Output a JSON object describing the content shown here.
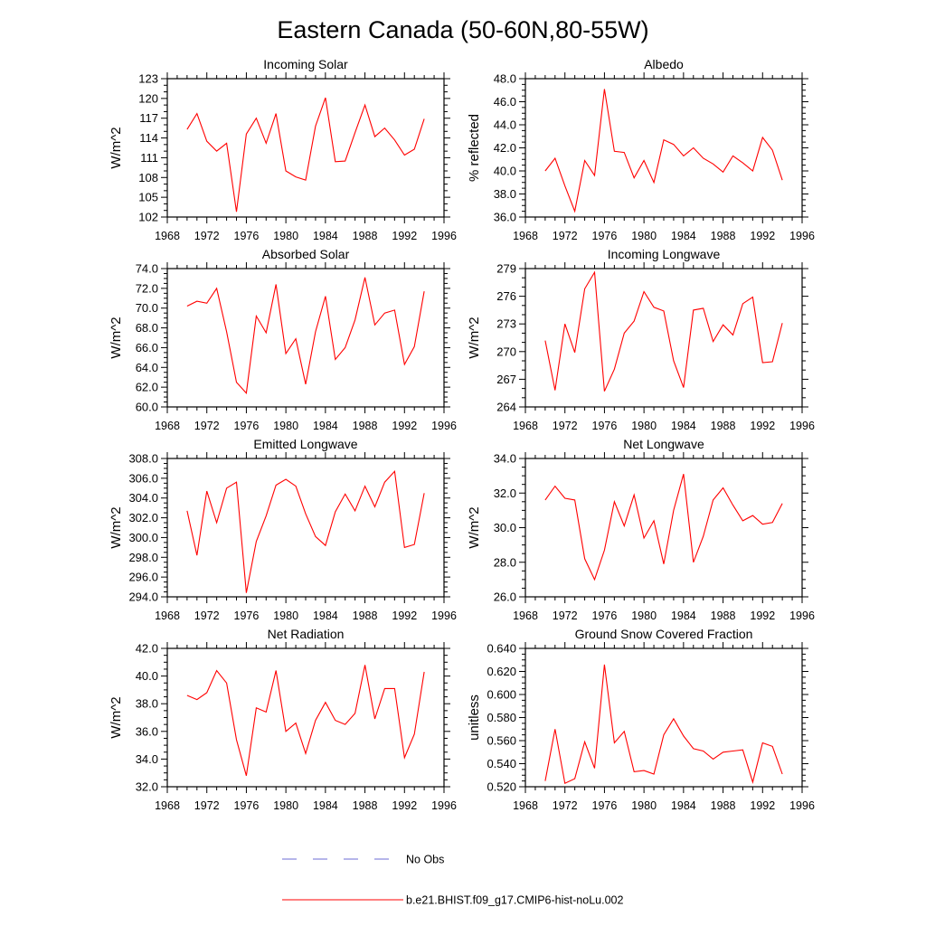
{
  "title": "Eastern Canada (50-60N,80-55W)",
  "legend": {
    "obs_label": "No Obs",
    "obs_color": "#6b6bd6",
    "model_label": "b.e21.BHIST.f09_g17.CMIP6-hist-noLu.002",
    "model_color": "#ff0000"
  },
  "series_color": "#ff0000",
  "chart_data": [
    {
      "type": "line",
      "title": "Incoming Solar",
      "ylabel": "W/m^2",
      "xlim": [
        1968,
        1996
      ],
      "xticks": [
        1968,
        1972,
        1976,
        1980,
        1984,
        1988,
        1992,
        1996
      ],
      "ylim": [
        102,
        123
      ],
      "yticks": [
        102,
        105,
        108,
        111,
        114,
        117,
        120,
        123
      ],
      "ytick_labels": [
        "102",
        "105",
        "108",
        "111",
        "114",
        "117",
        "120",
        "123"
      ],
      "x": [
        1970,
        1971,
        1972,
        1973,
        1974,
        1975,
        1976,
        1977,
        1978,
        1979,
        1980,
        1981,
        1982,
        1983,
        1984,
        1985,
        1986,
        1987,
        1988,
        1989,
        1990,
        1991,
        1992,
        1993,
        1994
      ],
      "values": [
        115.3,
        117.7,
        113.5,
        112.0,
        113.2,
        102.8,
        114.6,
        117.0,
        113.2,
        117.7,
        109.0,
        108.1,
        107.6,
        115.8,
        120.1,
        110.4,
        110.5,
        114.8,
        119.0,
        114.2,
        115.5,
        113.7,
        111.4,
        112.3,
        116.9
      ]
    },
    {
      "type": "line",
      "title": "Albedo",
      "ylabel": "% reflected",
      "xlim": [
        1968,
        1996
      ],
      "xticks": [
        1968,
        1972,
        1976,
        1980,
        1984,
        1988,
        1992,
        1996
      ],
      "ylim": [
        36,
        48
      ],
      "yticks": [
        36,
        38,
        40,
        42,
        44,
        46,
        48
      ],
      "ytick_labels": [
        "36.0",
        "38.0",
        "40.0",
        "42.0",
        "44.0",
        "46.0",
        "48.0"
      ],
      "x": [
        1970,
        1971,
        1972,
        1973,
        1974,
        1975,
        1976,
        1977,
        1978,
        1979,
        1980,
        1981,
        1982,
        1983,
        1984,
        1985,
        1986,
        1987,
        1988,
        1989,
        1990,
        1991,
        1992,
        1993,
        1994
      ],
      "values": [
        40.0,
        41.1,
        38.7,
        36.5,
        40.9,
        39.6,
        47.1,
        41.7,
        41.6,
        39.4,
        40.9,
        39.0,
        42.7,
        42.3,
        41.3,
        42.0,
        41.1,
        40.6,
        39.9,
        41.3,
        40.7,
        40.0,
        42.9,
        41.8,
        39.2
      ]
    },
    {
      "type": "line",
      "title": "Absorbed Solar",
      "ylabel": "W/m^2",
      "xlim": [
        1968,
        1996
      ],
      "xticks": [
        1968,
        1972,
        1976,
        1980,
        1984,
        1988,
        1992,
        1996
      ],
      "ylim": [
        60,
        74
      ],
      "yticks": [
        60,
        62,
        64,
        66,
        68,
        70,
        72,
        74
      ],
      "ytick_labels": [
        "60.0",
        "62.0",
        "64.0",
        "66.0",
        "68.0",
        "70.0",
        "72.0",
        "74.0"
      ],
      "x": [
        1970,
        1971,
        1972,
        1973,
        1974,
        1975,
        1976,
        1977,
        1978,
        1979,
        1980,
        1981,
        1982,
        1983,
        1984,
        1985,
        1986,
        1987,
        1988,
        1989,
        1990,
        1991,
        1992,
        1993,
        1994
      ],
      "values": [
        70.2,
        70.7,
        70.5,
        72.0,
        67.6,
        62.5,
        61.4,
        69.2,
        67.5,
        72.4,
        65.4,
        66.9,
        62.3,
        67.6,
        71.2,
        64.8,
        66.0,
        68.8,
        73.1,
        68.3,
        69.5,
        69.8,
        64.3,
        66.1,
        71.7
      ]
    },
    {
      "type": "line",
      "title": "Incoming Longwave",
      "ylabel": "W/m^2",
      "xlim": [
        1968,
        1996
      ],
      "xticks": [
        1968,
        1972,
        1976,
        1980,
        1984,
        1988,
        1992,
        1996
      ],
      "ylim": [
        264,
        279
      ],
      "yticks": [
        264,
        267,
        270,
        273,
        276,
        279
      ],
      "ytick_labels": [
        "264",
        "267",
        "270",
        "273",
        "276",
        "279"
      ],
      "x": [
        1970,
        1971,
        1972,
        1973,
        1974,
        1975,
        1976,
        1977,
        1978,
        1979,
        1980,
        1981,
        1982,
        1983,
        1984,
        1985,
        1986,
        1987,
        1988,
        1989,
        1990,
        1991,
        1992,
        1993,
        1994
      ],
      "values": [
        271.2,
        265.8,
        273.0,
        269.9,
        276.8,
        278.6,
        265.7,
        268.1,
        272.0,
        273.3,
        276.5,
        274.8,
        274.4,
        269.0,
        266.1,
        274.5,
        274.7,
        271.1,
        272.9,
        271.8,
        275.2,
        275.9,
        268.8,
        268.9,
        273.1
      ]
    },
    {
      "type": "line",
      "title": "Emitted Longwave",
      "ylabel": "W/m^2",
      "xlim": [
        1968,
        1996
      ],
      "xticks": [
        1968,
        1972,
        1976,
        1980,
        1984,
        1988,
        1992,
        1996
      ],
      "ylim": [
        294,
        308
      ],
      "yticks": [
        294,
        296,
        298,
        300,
        302,
        304,
        306,
        308
      ],
      "ytick_labels": [
        "294.0",
        "296.0",
        "298.0",
        "300.0",
        "302.0",
        "304.0",
        "306.0",
        "308.0"
      ],
      "x": [
        1970,
        1971,
        1972,
        1973,
        1974,
        1975,
        1976,
        1977,
        1978,
        1979,
        1980,
        1981,
        1982,
        1983,
        1984,
        1985,
        1986,
        1987,
        1988,
        1989,
        1990,
        1991,
        1992,
        1993,
        1994
      ],
      "values": [
        302.7,
        298.2,
        304.7,
        301.5,
        305.0,
        305.6,
        294.4,
        299.6,
        302.2,
        305.3,
        305.9,
        305.2,
        302.4,
        300.1,
        299.2,
        302.6,
        304.4,
        302.7,
        305.2,
        303.1,
        305.6,
        306.7,
        299.0,
        299.3,
        304.5
      ]
    },
    {
      "type": "line",
      "title": "Net Longwave",
      "ylabel": "W/m^2",
      "xlim": [
        1968,
        1996
      ],
      "xticks": [
        1968,
        1972,
        1976,
        1980,
        1984,
        1988,
        1992,
        1996
      ],
      "ylim": [
        26,
        34
      ],
      "yticks": [
        26,
        28,
        30,
        32,
        34
      ],
      "ytick_labels": [
        "26.0",
        "28.0",
        "30.0",
        "32.0",
        "34.0"
      ],
      "x": [
        1970,
        1971,
        1972,
        1973,
        1974,
        1975,
        1976,
        1977,
        1978,
        1979,
        1980,
        1981,
        1982,
        1983,
        1984,
        1985,
        1986,
        1987,
        1988,
        1989,
        1990,
        1991,
        1992,
        1993,
        1994
      ],
      "values": [
        31.6,
        32.4,
        31.7,
        31.6,
        28.2,
        27.0,
        28.7,
        31.5,
        30.1,
        31.9,
        29.4,
        30.4,
        27.9,
        31.0,
        33.1,
        28.0,
        29.5,
        31.6,
        32.3,
        31.3,
        30.4,
        30.7,
        30.2,
        30.3,
        31.4
      ]
    },
    {
      "type": "line",
      "title": "Net Radiation",
      "ylabel": "W/m^2",
      "xlim": [
        1968,
        1996
      ],
      "xticks": [
        1968,
        1972,
        1976,
        1980,
        1984,
        1988,
        1992,
        1996
      ],
      "ylim": [
        32,
        42
      ],
      "yticks": [
        32,
        34,
        36,
        38,
        40,
        42
      ],
      "ytick_labels": [
        "32.0",
        "34.0",
        "36.0",
        "38.0",
        "40.0",
        "42.0"
      ],
      "x": [
        1970,
        1971,
        1972,
        1973,
        1974,
        1975,
        1976,
        1977,
        1978,
        1979,
        1980,
        1981,
        1982,
        1983,
        1984,
        1985,
        1986,
        1987,
        1988,
        1989,
        1990,
        1991,
        1992,
        1993,
        1994
      ],
      "values": [
        38.6,
        38.3,
        38.8,
        40.4,
        39.5,
        35.4,
        32.8,
        37.7,
        37.4,
        40.4,
        36.0,
        36.6,
        34.4,
        36.8,
        38.1,
        36.8,
        36.5,
        37.3,
        40.8,
        36.9,
        39.1,
        39.1,
        34.1,
        35.8,
        40.3
      ]
    },
    {
      "type": "line",
      "title": "Ground Snow Covered Fraction",
      "ylabel": "unitless",
      "xlim": [
        1968,
        1996
      ],
      "xticks": [
        1968,
        1972,
        1976,
        1980,
        1984,
        1988,
        1992,
        1996
      ],
      "ylim": [
        0.52,
        0.64
      ],
      "yticks": [
        0.52,
        0.54,
        0.56,
        0.58,
        0.6,
        0.62,
        0.64
      ],
      "ytick_labels": [
        "0.520",
        "0.540",
        "0.560",
        "0.580",
        "0.600",
        "0.620",
        "0.640"
      ],
      "x": [
        1970,
        1971,
        1972,
        1973,
        1974,
        1975,
        1976,
        1977,
        1978,
        1979,
        1980,
        1981,
        1982,
        1983,
        1984,
        1985,
        1986,
        1987,
        1988,
        1989,
        1990,
        1991,
        1992,
        1993,
        1994
      ],
      "values": [
        0.525,
        0.57,
        0.523,
        0.527,
        0.559,
        0.536,
        0.626,
        0.558,
        0.568,
        0.533,
        0.534,
        0.531,
        0.565,
        0.579,
        0.564,
        0.553,
        0.551,
        0.544,
        0.55,
        0.551,
        0.552,
        0.524,
        0.558,
        0.555,
        0.531
      ]
    }
  ]
}
